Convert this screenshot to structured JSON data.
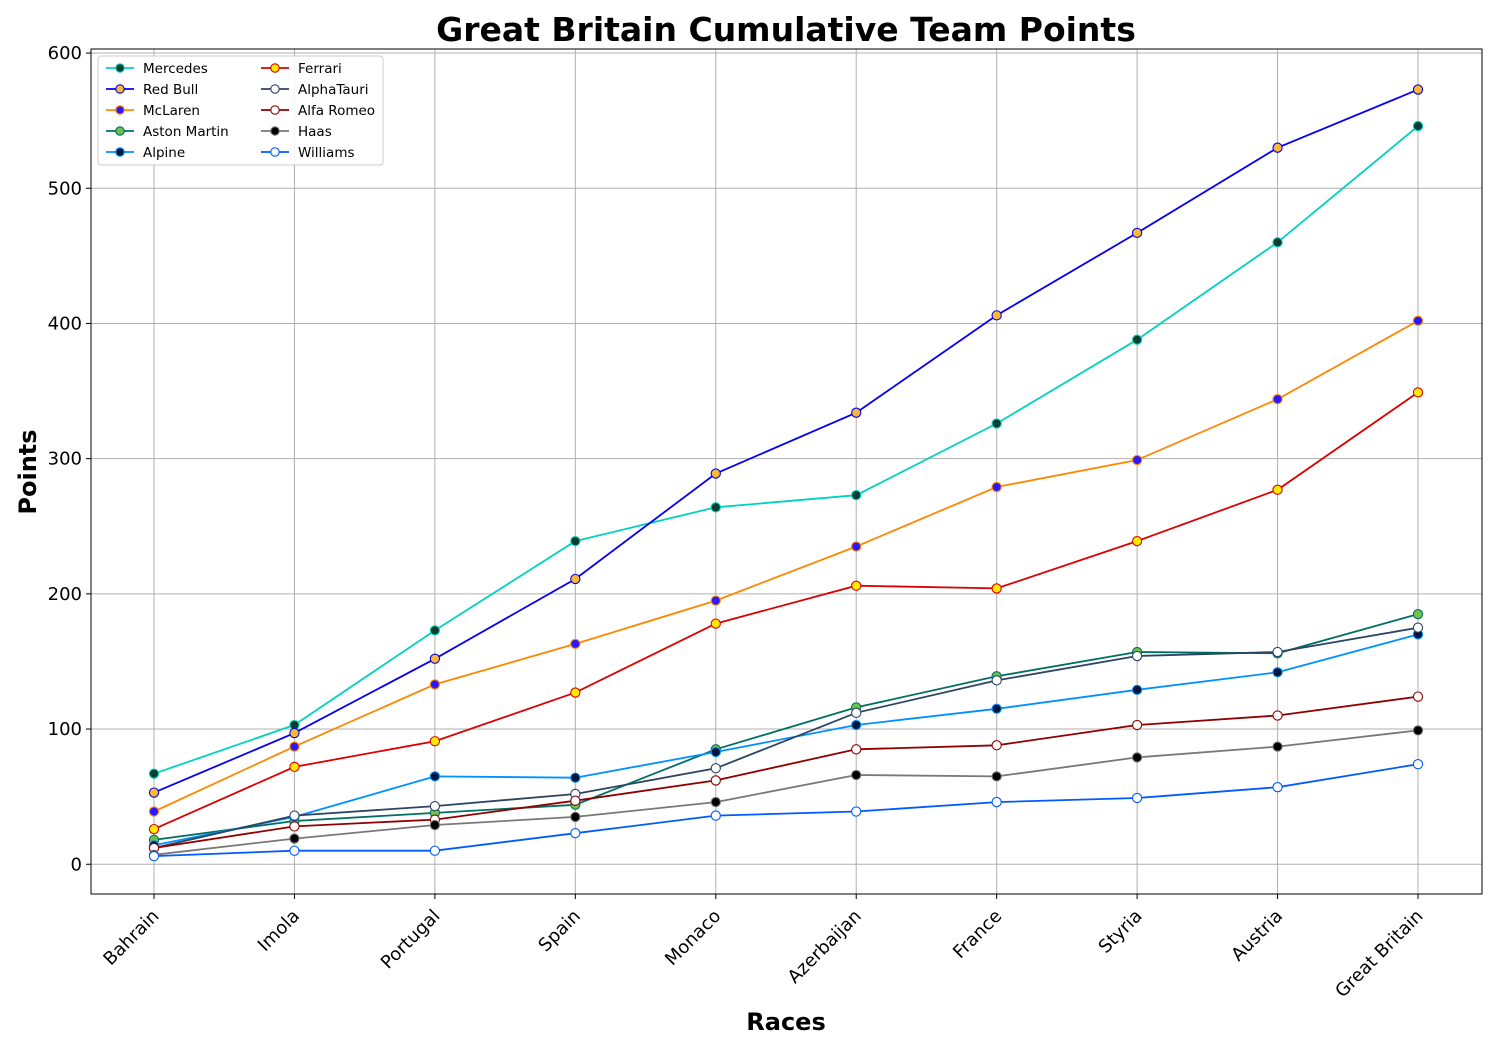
{
  "chart_data": {
    "type": "line",
    "title": "Great Britain Cumulative Team Points",
    "xlabel": "Races",
    "ylabel": "Points",
    "categories": [
      "Bahrain",
      "Imola",
      "Portugal",
      "Spain",
      "Monaco",
      "Azerbaijan",
      "France",
      "Styria",
      "Austria",
      "Great Britain"
    ],
    "ylim": [
      -22,
      603
    ],
    "yticks": [
      0,
      100,
      200,
      300,
      400,
      500,
      600
    ],
    "grid": true,
    "legend_position": "top-left",
    "series": [
      {
        "name": "Mercedes",
        "color": "#00D2BE",
        "marker_face": "#0a3d2e",
        "marker_edge": "#00D2BE",
        "values": [
          67,
          103,
          173,
          239,
          264,
          273,
          326,
          388,
          460,
          546
        ]
      },
      {
        "name": "Red Bull",
        "color": "#0600EF",
        "marker_face": "#F9B934",
        "marker_edge": "#0600EF",
        "values": [
          53,
          97,
          152,
          211,
          289,
          334,
          406,
          467,
          530,
          573
        ]
      },
      {
        "name": "McLaren",
        "color": "#FF8700",
        "marker_face": "#2B19FF",
        "marker_edge": "#FF8700",
        "values": [
          39,
          87,
          133,
          163,
          195,
          235,
          279,
          299,
          344,
          402
        ]
      },
      {
        "name": "Aston Martin",
        "color": "#006F62",
        "marker_face": "#6CC24A",
        "marker_edge": "#006F62",
        "values": [
          18,
          32,
          38,
          44,
          85,
          116,
          139,
          157,
          156,
          185
        ]
      },
      {
        "name": "Alpine",
        "color": "#0090FF",
        "marker_face": "#00143C",
        "marker_edge": "#0090FF",
        "values": [
          14,
          35,
          65,
          64,
          83,
          103,
          115,
          129,
          142,
          170
        ]
      },
      {
        "name": "Ferrari",
        "color": "#DC0000",
        "marker_face": "#FFEB00",
        "marker_edge": "#DC0000",
        "values": [
          26,
          72,
          91,
          127,
          178,
          206,
          204,
          239,
          277,
          349
        ]
      },
      {
        "name": "AlphaTauri",
        "color": "#2B4562",
        "marker_face": "#FFFFFF",
        "marker_edge": "#2B4562",
        "values": [
          12,
          36,
          43,
          52,
          71,
          112,
          136,
          154,
          157,
          175
        ]
      },
      {
        "name": "Alfa Romeo",
        "color": "#900000",
        "marker_face": "#FFFFFF",
        "marker_edge": "#900000",
        "values": [
          12,
          28,
          33,
          47,
          62,
          85,
          88,
          103,
          110,
          124
        ]
      },
      {
        "name": "Haas",
        "color": "#787878",
        "marker_face": "#000000",
        "marker_edge": "#787878",
        "values": [
          7,
          19,
          29,
          35,
          46,
          66,
          65,
          79,
          87,
          99
        ]
      },
      {
        "name": "Williams",
        "color": "#005AFF",
        "marker_face": "#FFFFFF",
        "marker_edge": "#005AFF",
        "values": [
          6,
          10,
          10,
          23,
          36,
          39,
          46,
          49,
          57,
          74
        ]
      }
    ]
  }
}
